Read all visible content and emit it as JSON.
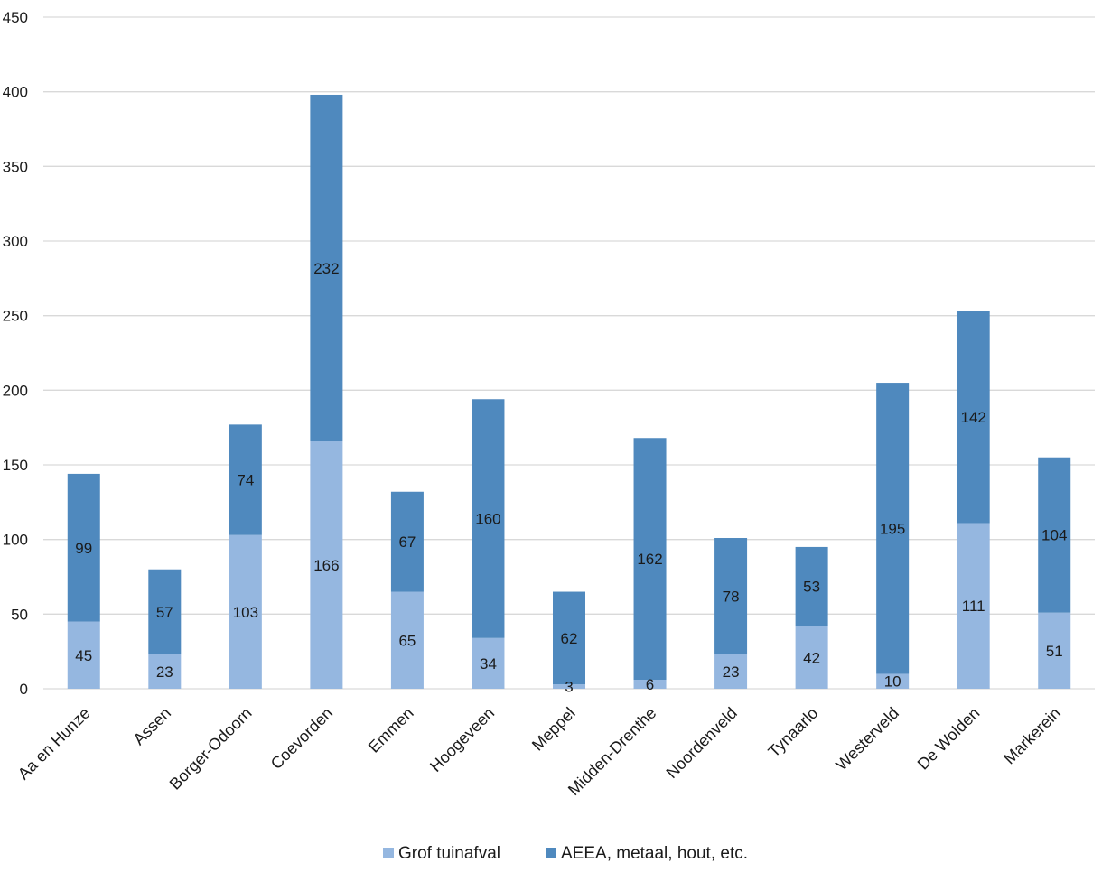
{
  "chart_data": {
    "type": "bar",
    "stacked": true,
    "categories": [
      "Aa en Hunze",
      "Assen",
      "Borger-Odoorn",
      "Coevorden",
      "Emmen",
      "Hoogeveen",
      "Meppel",
      "Midden-Drenthe",
      "Noordenveld",
      "Tynaarlo",
      "Westerveld",
      "De Wolden",
      "Markerein"
    ],
    "series": [
      {
        "name": "Grof tuinafval",
        "color": "#95b7e0",
        "values": [
          45,
          23,
          103,
          166,
          65,
          34,
          3,
          6,
          23,
          42,
          10,
          111,
          51
        ]
      },
      {
        "name": "AEEA, metaal, hout, etc.",
        "color": "#4f89be",
        "values": [
          99,
          57,
          74,
          232,
          67,
          160,
          62,
          162,
          78,
          53,
          195,
          142,
          104
        ]
      }
    ],
    "ylim": [
      0,
      450
    ],
    "yticks": [
      0,
      50,
      100,
      150,
      200,
      250,
      300,
      350,
      400,
      450
    ],
    "xlabel": "",
    "ylabel": "",
    "title": "",
    "grid": true,
    "legend_position": "bottom-center",
    "data_labels": true
  }
}
